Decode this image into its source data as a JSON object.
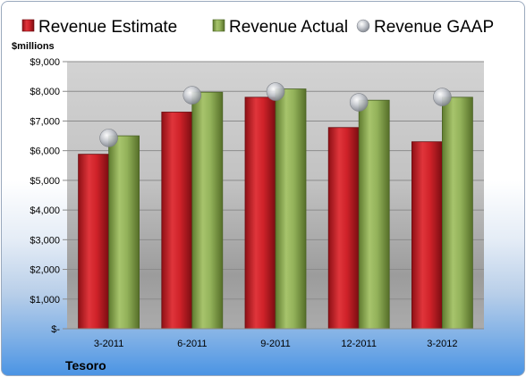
{
  "company": "Tesoro",
  "chart_data": {
    "type": "bar",
    "ylabel": "$millions",
    "ylim": [
      0,
      9000
    ],
    "yticks": [
      "$-",
      "$1,000",
      "$2,000",
      "$3,000",
      "$4,000",
      "$5,000",
      "$6,000",
      "$7,000",
      "$8,000",
      "$9,000"
    ],
    "categories": [
      "3-2011",
      "6-2011",
      "9-2011",
      "12-2011",
      "3-2012"
    ],
    "series": [
      {
        "name": "Revenue Estimate",
        "kind": "bar",
        "color": "#c8202a",
        "values": [
          5880,
          7300,
          7800,
          6780,
          6300
        ]
      },
      {
        "name": "Revenue Actual",
        "kind": "bar",
        "color": "#8fae55",
        "values": [
          6500,
          7970,
          8080,
          7700,
          7800
        ]
      },
      {
        "name": "Revenue GAAP",
        "kind": "marker",
        "color": "#b8bcc4",
        "values": [
          6430,
          7870,
          7990,
          7630,
          7810
        ]
      }
    ],
    "grid": true,
    "legend": "top"
  }
}
